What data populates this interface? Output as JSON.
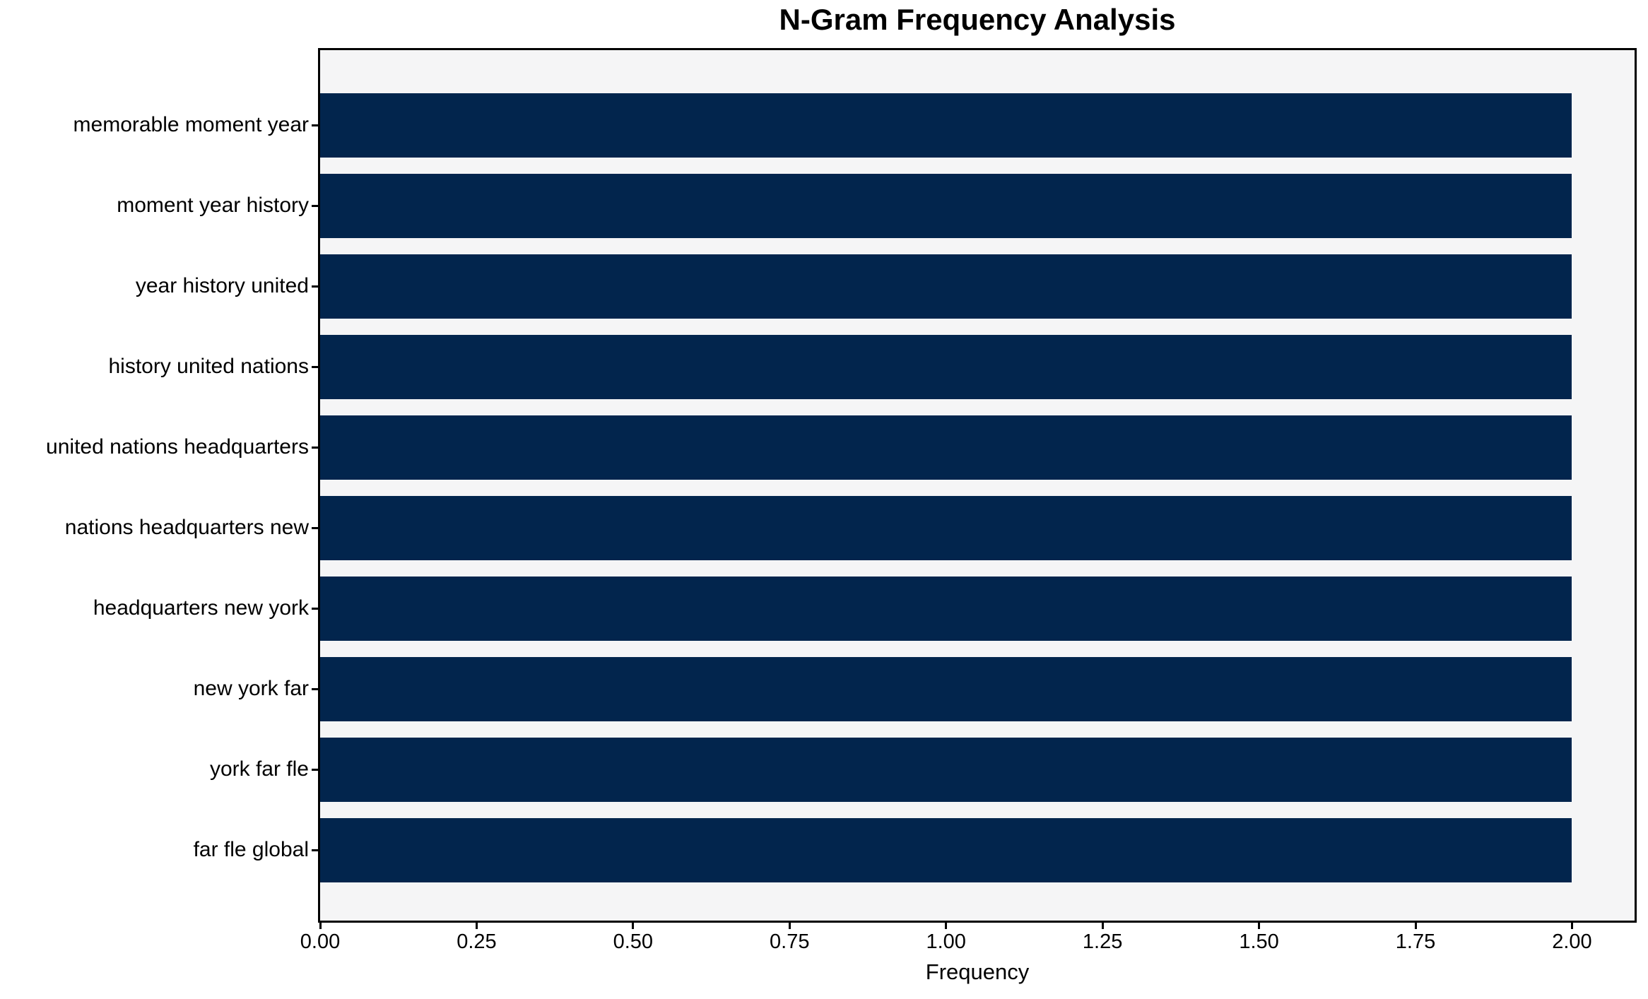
{
  "chart_data": {
    "type": "bar",
    "orientation": "horizontal",
    "title": "N-Gram Frequency Analysis",
    "xlabel": "Frequency",
    "ylabel": "",
    "categories": [
      "memorable moment year",
      "moment year history",
      "year history united",
      "history united nations",
      "united nations headquarters",
      "nations headquarters new",
      "headquarters new york",
      "new york far",
      "york far fle",
      "far fle global"
    ],
    "values": [
      2,
      2,
      2,
      2,
      2,
      2,
      2,
      2,
      2,
      2
    ],
    "xlim": [
      0,
      2.1
    ],
    "xtick_values": [
      0.0,
      0.25,
      0.5,
      0.75,
      1.0,
      1.25,
      1.5,
      1.75,
      2.0
    ],
    "xtick_labels": [
      "0.00",
      "0.25",
      "0.50",
      "0.75",
      "1.00",
      "1.25",
      "1.50",
      "1.75",
      "2.00"
    ],
    "grid": false,
    "legend_position": "none",
    "bar_color": "#02254d",
    "plot_background": "#f5f5f6",
    "figure_background": "#ffffff",
    "text_color": "#000000"
  }
}
